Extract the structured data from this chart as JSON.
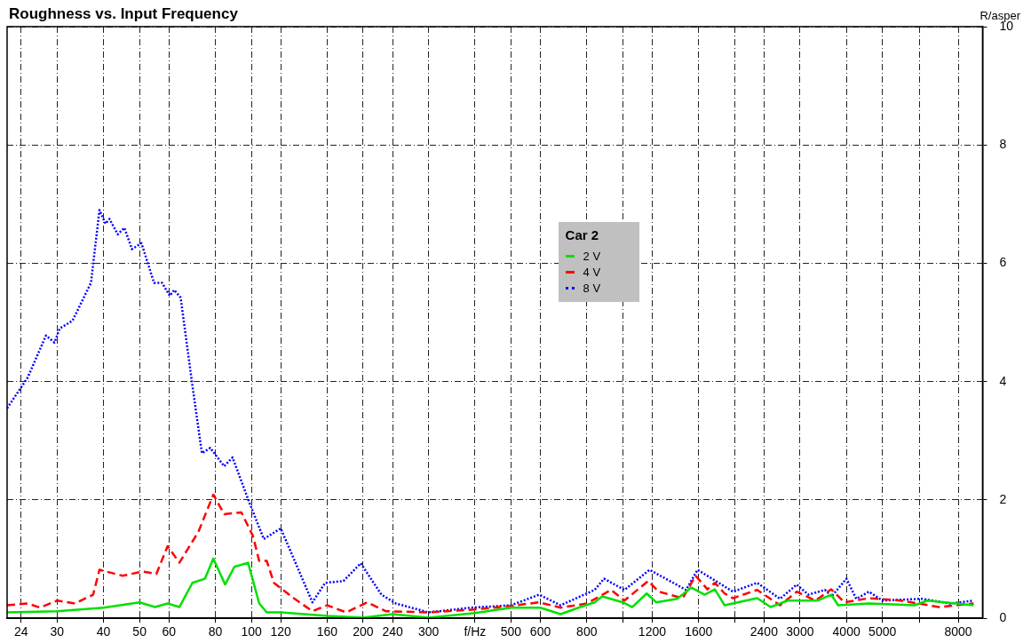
{
  "chart_data": {
    "type": "line",
    "title": "Roughness vs. Input Frequency",
    "ylabel": "R/asper",
    "legend_title": "Car 2",
    "legend": "center",
    "grid": true,
    "log": "x",
    "xlim": [
      22,
      9300
    ],
    "ylim": [
      0,
      10
    ],
    "yticks": [
      0,
      2,
      4,
      6,
      8,
      10
    ],
    "xticks": [
      24,
      30,
      40,
      50,
      60,
      80,
      100,
      120,
      160,
      200,
      240,
      300,
      {
        "value": 400,
        "label": "f/Hz"
      },
      500,
      600,
      800,
      {
        "value": 1000,
        "label": null
      },
      1200,
      1600,
      {
        "value": 2000,
        "label": null
      },
      2400,
      3000,
      4000,
      5000,
      {
        "value": 6300,
        "label": null
      },
      8000
    ],
    "series": [
      {
        "name": "2 V",
        "color": "#00e000",
        "line_style": "solid",
        "x": [
          22,
          30,
          40,
          50,
          55,
          59.5,
          64,
          69.4,
          75,
          79,
          85,
          90,
          98,
          105,
          110,
          120,
          160,
          200,
          240,
          300,
          400,
          500,
          600,
          680,
          760,
          840,
          880,
          1000,
          1060,
          1160,
          1230,
          1400,
          1530,
          1660,
          1770,
          1880,
          2300,
          2500,
          2780,
          3350,
          3640,
          3800,
          4600,
          6100,
          6600,
          8800
        ],
        "values": [
          0.1,
          0.12,
          0.18,
          0.27,
          0.19,
          0.25,
          0.19,
          0.6,
          0.67,
          1.01,
          0.57,
          0.87,
          0.94,
          0.25,
          0.1,
          0.1,
          0.04,
          0.01,
          0.07,
          0.01,
          0.09,
          0.18,
          0.18,
          0.07,
          0.18,
          0.27,
          0.37,
          0.27,
          0.19,
          0.42,
          0.27,
          0.33,
          0.52,
          0.4,
          0.49,
          0.22,
          0.34,
          0.19,
          0.3,
          0.3,
          0.4,
          0.22,
          0.25,
          0.22,
          0.3,
          0.22
        ]
      },
      {
        "name": "4 V",
        "color": "#ff0000",
        "line_style": "dashed",
        "x": [
          22,
          25,
          27,
          30,
          33.5,
          37.5,
          39,
          45,
          51,
          55.5,
          59.5,
          64,
          72,
          79,
          84.5,
          94,
          101,
          105,
          110,
          115,
          130,
          146,
          160,
          180,
          205,
          230,
          300,
          400,
          500,
          595,
          680,
          800,
          930,
          1010,
          1170,
          1250,
          1450,
          1570,
          1690,
          1770,
          1880,
          1980,
          2300,
          2650,
          2940,
          3300,
          3640,
          3950,
          4600,
          5600,
          7100,
          8800
        ],
        "values": [
          0.22,
          0.25,
          0.18,
          0.3,
          0.25,
          0.4,
          0.82,
          0.72,
          0.79,
          0.75,
          1.22,
          0.94,
          1.46,
          2.09,
          1.76,
          1.79,
          1.39,
          0.97,
          0.97,
          0.6,
          0.34,
          0.12,
          0.22,
          0.1,
          0.27,
          0.12,
          0.1,
          0.15,
          0.21,
          0.27,
          0.18,
          0.25,
          0.48,
          0.3,
          0.63,
          0.45,
          0.34,
          0.72,
          0.49,
          0.6,
          0.42,
          0.34,
          0.48,
          0.22,
          0.45,
          0.3,
          0.49,
          0.27,
          0.34,
          0.3,
          0.19,
          0.25
        ]
      },
      {
        "name": "8 V",
        "color": "#0000ff",
        "line_style": "dotted",
        "x": [
          22,
          25,
          28,
          29.5,
          30.5,
          33,
          37,
          39,
          40.5,
          41.5,
          43.7,
          45.5,
          47.7,
          50.6,
          54.7,
          57.5,
          60.3,
          62,
          64.5,
          69.4,
          73.6,
          77.5,
          84.5,
          89,
          99,
          108,
          120,
          146,
          158,
          177,
          197,
          224,
          245,
          300,
          390,
          500,
          595,
          680,
          840,
          890,
          1010,
          1180,
          1480,
          1590,
          1980,
          2300,
          2650,
          2940,
          3160,
          3500,
          3650,
          4000,
          4250,
          4600,
          5000,
          6400,
          7600,
          8800
        ],
        "values": [
          3.55,
          4.07,
          4.78,
          4.66,
          4.9,
          5.03,
          5.67,
          6.9,
          6.67,
          6.75,
          6.49,
          6.6,
          6.24,
          6.34,
          5.67,
          5.67,
          5.45,
          5.55,
          5.42,
          3.93,
          2.79,
          2.88,
          2.57,
          2.72,
          1.94,
          1.34,
          1.52,
          0.27,
          0.6,
          0.63,
          0.93,
          0.4,
          0.25,
          0.1,
          0.18,
          0.22,
          0.4,
          0.22,
          0.48,
          0.67,
          0.48,
          0.82,
          0.48,
          0.82,
          0.45,
          0.6,
          0.33,
          0.57,
          0.4,
          0.48,
          0.37,
          0.67,
          0.33,
          0.45,
          0.3,
          0.33,
          0.25,
          0.3
        ]
      }
    ]
  }
}
